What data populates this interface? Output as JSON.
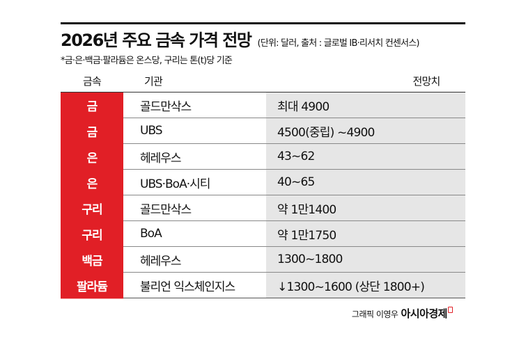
{
  "header": {
    "title": "2026년 주요 금속 가격 전망",
    "unit_source": "(단위: 달러, 출처 : 글로벌 IB·리서치 컨센서스)",
    "note": "*금·은·백금·팔라듐은 온스당, 구리는 톤(t)당 기준"
  },
  "table": {
    "columns": [
      "금속",
      "기관",
      "전망치"
    ],
    "rows": [
      {
        "metal": "금",
        "org": "골드만삭스",
        "value": "최대 4900"
      },
      {
        "metal": "금",
        "org": "UBS",
        "value": "4500(중립) ~4900"
      },
      {
        "metal": "은",
        "org": "헤레우스",
        "value": "43~62"
      },
      {
        "metal": "은",
        "org": "UBS·BoA·시티",
        "value": "40~65"
      },
      {
        "metal": "구리",
        "org": "골드만삭스",
        "value": "약 1만1400"
      },
      {
        "metal": "구리",
        "org": "BoA",
        "value": "약 1만1750"
      },
      {
        "metal": "백금",
        "org": "헤레우스",
        "value": "1300~1800"
      },
      {
        "metal": "팔라듐",
        "org": "불리언 익스체인지스",
        "value": "↓1300~1600 (상단 1800+)"
      }
    ]
  },
  "footer": {
    "credit": "그래픽 이영우",
    "brand": "아시아경제"
  },
  "colors": {
    "metal_cell": "#e11f26",
    "value_cell": "#e6e6e6",
    "rule": "#111111"
  }
}
